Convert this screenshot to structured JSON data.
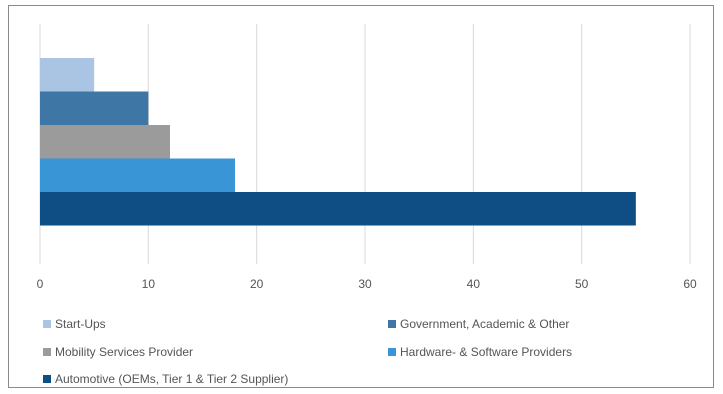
{
  "chart_data": {
    "type": "bar",
    "orientation": "horizontal",
    "stacked": false,
    "categories": [
      "Start-Ups",
      "Government, Academic & Other",
      "Mobility Services Provider",
      "Hardware- & Software Providers",
      "Automotive (OEMs, Tier 1 & Tier 2 Supplier)"
    ],
    "values": [
      5,
      10,
      12,
      18,
      55
    ],
    "colors": [
      "#a9c5e3",
      "#3e77a5",
      "#9b9b9b",
      "#3a95d6",
      "#0f4e85"
    ],
    "xlim": [
      0,
      60
    ],
    "x_ticks": [
      0,
      10,
      20,
      30,
      40,
      50,
      60
    ],
    "grid": "vertical",
    "legend_position": "bottom",
    "legend": [
      {
        "label": "Start-Ups",
        "color": "#a9c5e3"
      },
      {
        "label": "Government, Academic & Other",
        "color": "#3e77a5"
      },
      {
        "label": "Mobility Services Provider",
        "color": "#9b9b9b"
      },
      {
        "label": "Hardware- & Software Providers",
        "color": "#3a95d6"
      },
      {
        "label": "Automotive (OEMs, Tier 1 & Tier 2 Supplier)",
        "color": "#0f4e85"
      }
    ]
  }
}
